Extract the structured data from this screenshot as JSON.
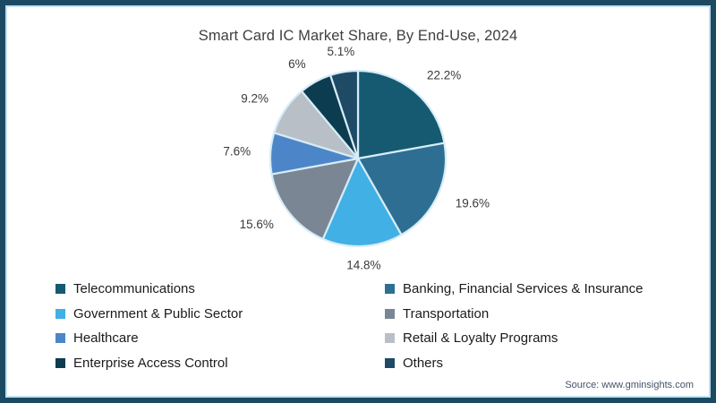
{
  "title": "Smart Card IC Market Share, By End-Use, 2024",
  "source_note": "Source: www.gminsights.com",
  "colors": {
    "frame_border_outer": "#1c4a63",
    "frame_border_inner": "#c0e2ee",
    "background": "#ffffff",
    "title_text": "#3f3f3f",
    "percent_label_text": "#3a3a3a",
    "legend_text": "#1b1b1b",
    "source_text": "#44546a",
    "slice_divider": "#d6ecf7"
  },
  "chart_data": {
    "type": "pie",
    "title": "Smart Card IC Market Share, By End-Use, 2024",
    "start_angle_deg": 0,
    "direction": "clockwise",
    "legend_position": "bottom-two-columns",
    "series": [
      {
        "label": "Telecommunications",
        "value": 22.2,
        "display": "22.2%",
        "color": "#155a70"
      },
      {
        "label": "Banking, Financial Services & Insurance",
        "value": 19.6,
        "display": "19.6%",
        "color": "#2e6e93"
      },
      {
        "label": "Government & Public Sector",
        "value": 14.8,
        "display": "14.8%",
        "color": "#41b0e4"
      },
      {
        "label": "Transportation",
        "value": 15.6,
        "display": "15.6%",
        "color": "#7a8694"
      },
      {
        "label": "Healthcare",
        "value": 7.6,
        "display": "7.6%",
        "color": "#4d86c8"
      },
      {
        "label": "Retail & Loyalty Programs",
        "value": 9.2,
        "display": "9.2%",
        "color": "#b8bfc7"
      },
      {
        "label": "Enterprise Access Control",
        "value": 6.0,
        "display": "6%",
        "color": "#0c3c4f"
      },
      {
        "label": "Others",
        "value": 5.1,
        "display": "5.1%",
        "color": "#1e4a66"
      }
    ]
  }
}
